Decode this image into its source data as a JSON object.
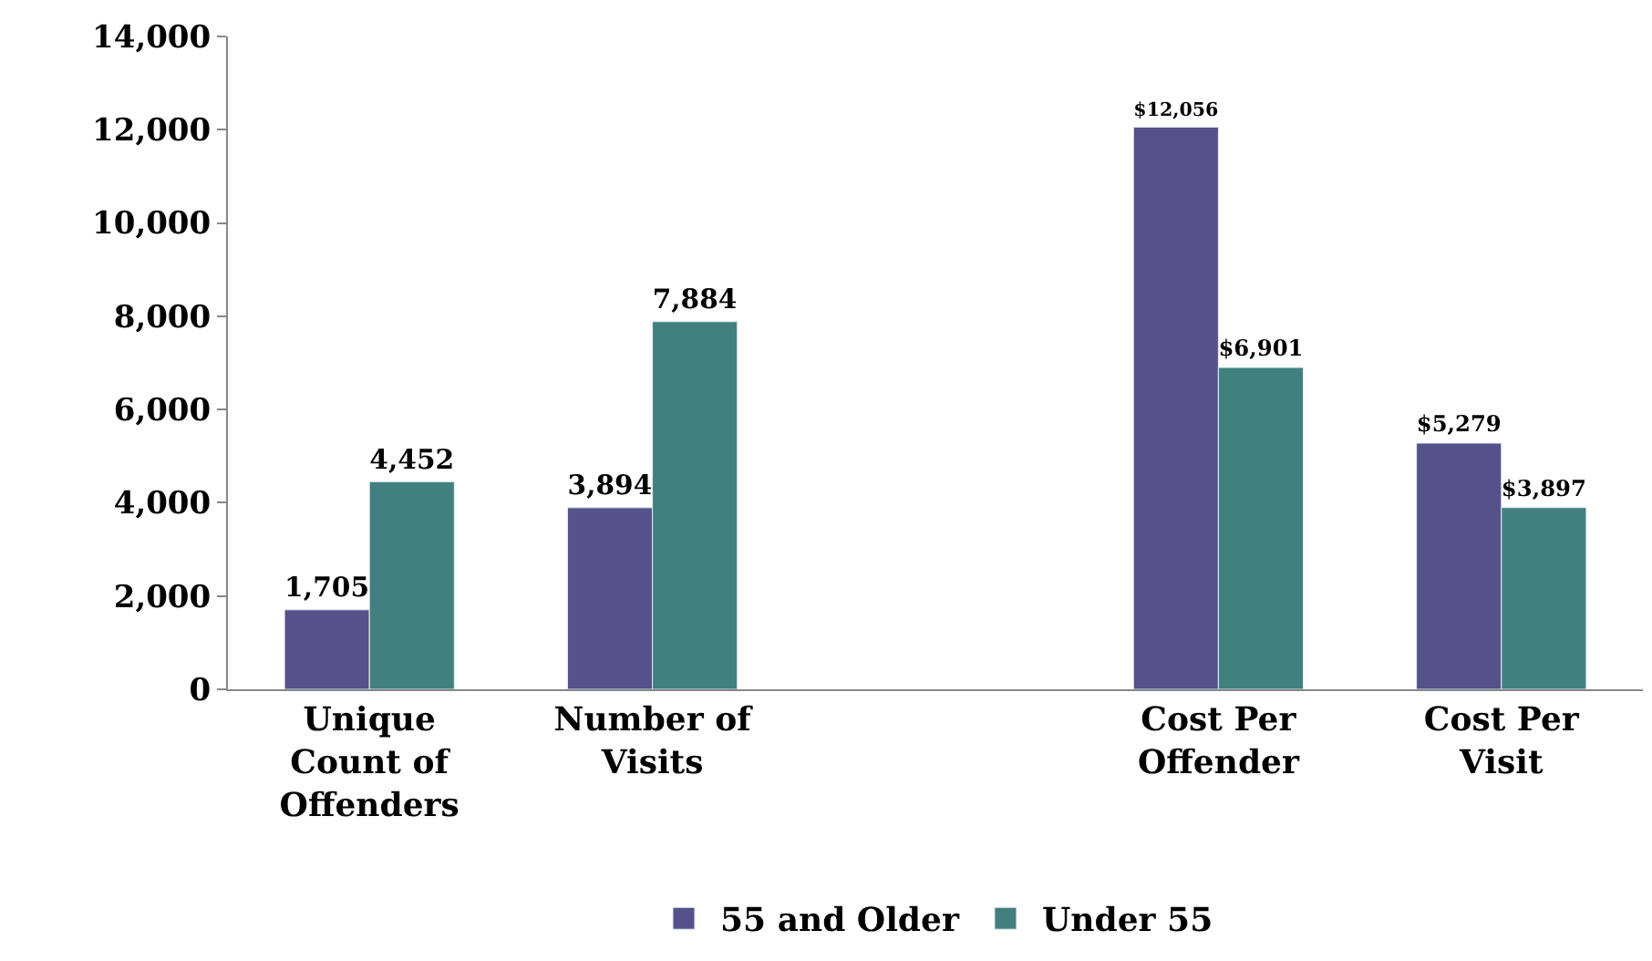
{
  "chart_data": {
    "type": "bar",
    "categories": [
      "Unique Count of Offenders",
      "Number of Visits",
      null,
      "Cost Per Offender",
      "Cost Per Visit"
    ],
    "series": [
      {
        "name": "55 and Older",
        "color": "#55528a",
        "values": [
          1705,
          3894,
          null,
          12056,
          5279
        ],
        "value_labels": [
          "1,705",
          "3,894",
          null,
          "$12,056",
          "$5,279"
        ]
      },
      {
        "name": "Under 55",
        "color": "#428080",
        "values": [
          4452,
          7884,
          null,
          6901,
          3897
        ],
        "value_labels": [
          "4,452",
          "7,884",
          null,
          "$6,901",
          "$3,897"
        ]
      }
    ],
    "ylim": [
      0,
      14000
    ],
    "yticks": [
      {
        "value": 0,
        "label": "0"
      },
      {
        "value": 2000,
        "label": "2,000"
      },
      {
        "value": 4000,
        "label": "4,000"
      },
      {
        "value": 6000,
        "label": "6,000"
      },
      {
        "value": 8000,
        "label": "8,000"
      },
      {
        "value": 10000,
        "label": "10,000"
      },
      {
        "value": 12000,
        "label": "12,000"
      },
      {
        "value": 14000,
        "label": "14,000"
      }
    ],
    "legend": "bottom"
  }
}
